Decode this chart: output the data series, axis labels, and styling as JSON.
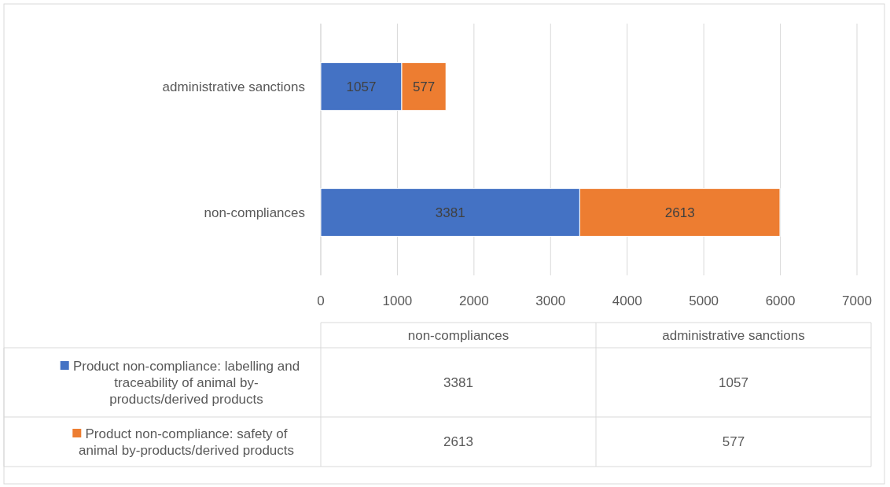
{
  "chart_data": {
    "type": "bar",
    "orientation": "horizontal",
    "stacked": true,
    "categories": [
      "administrative sanctions",
      "non-compliances"
    ],
    "series": [
      {
        "name": "Product non-compliance: labelling and traceability of animal by-products/derived products",
        "color": "#4472c4",
        "values": [
          1057,
          3381
        ],
        "value_labels": [
          "1057",
          "3381"
        ]
      },
      {
        "name": "Product non-compliance: safety of animal by-products/derived products",
        "color": "#ed7d31",
        "values": [
          577,
          2613
        ],
        "value_labels": [
          "577",
          "2613"
        ]
      }
    ],
    "xlim": [
      0,
      7000
    ],
    "xticks": [
      0,
      1000,
      2000,
      3000,
      4000,
      5000,
      6000,
      7000
    ],
    "grid": "x",
    "legend": "bottom"
  }
}
